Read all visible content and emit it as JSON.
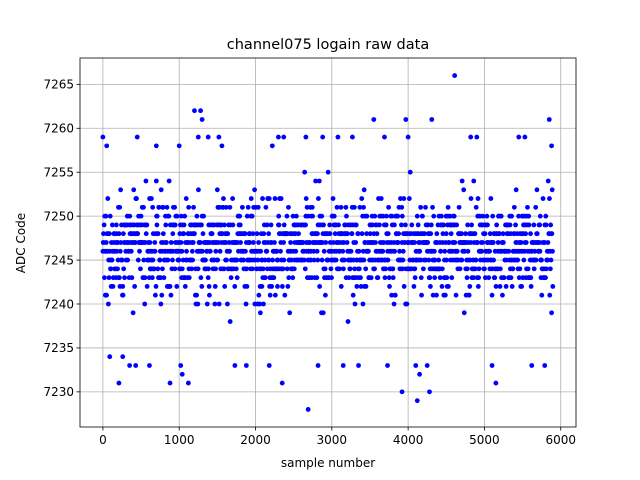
{
  "chart_data": {
    "type": "scatter",
    "title": "channel075 logain raw data",
    "xlabel": "sample number",
    "ylabel": "ADC Code",
    "xlim": [
      -300,
      6200
    ],
    "ylim": [
      7226,
      7268
    ],
    "xticks": [
      0,
      1000,
      2000,
      3000,
      4000,
      5000,
      6000
    ],
    "yticks": [
      7230,
      7235,
      7240,
      7245,
      7250,
      7255,
      7260,
      7265
    ],
    "grid": true,
    "marker_color": "#0000ff",
    "n_samples": 5900,
    "distribution": {
      "mean": 7246.5,
      "core_range": [
        7238,
        7255
      ]
    },
    "outliers": [
      {
        "x": 0,
        "y": 7259
      },
      {
        "x": 50,
        "y": 7258
      },
      {
        "x": 90,
        "y": 7234
      },
      {
        "x": 210,
        "y": 7231
      },
      {
        "x": 260,
        "y": 7234
      },
      {
        "x": 350,
        "y": 7233
      },
      {
        "x": 430,
        "y": 7233
      },
      {
        "x": 450,
        "y": 7259
      },
      {
        "x": 610,
        "y": 7233
      },
      {
        "x": 700,
        "y": 7258
      },
      {
        "x": 880,
        "y": 7231
      },
      {
        "x": 1000,
        "y": 7258
      },
      {
        "x": 1020,
        "y": 7233
      },
      {
        "x": 1040,
        "y": 7232
      },
      {
        "x": 1120,
        "y": 7231
      },
      {
        "x": 1200,
        "y": 7262
      },
      {
        "x": 1280,
        "y": 7262
      },
      {
        "x": 1300,
        "y": 7261
      },
      {
        "x": 1250,
        "y": 7259
      },
      {
        "x": 1380,
        "y": 7259
      },
      {
        "x": 1520,
        "y": 7259
      },
      {
        "x": 1560,
        "y": 7258
      },
      {
        "x": 1730,
        "y": 7233
      },
      {
        "x": 1880,
        "y": 7233
      },
      {
        "x": 2180,
        "y": 7233
      },
      {
        "x": 2220,
        "y": 7258
      },
      {
        "x": 2300,
        "y": 7259
      },
      {
        "x": 2370,
        "y": 7259
      },
      {
        "x": 2350,
        "y": 7231
      },
      {
        "x": 2660,
        "y": 7259
      },
      {
        "x": 2690,
        "y": 7228
      },
      {
        "x": 2820,
        "y": 7233
      },
      {
        "x": 2880,
        "y": 7259
      },
      {
        "x": 3080,
        "y": 7259
      },
      {
        "x": 3150,
        "y": 7233
      },
      {
        "x": 3270,
        "y": 7259
      },
      {
        "x": 3350,
        "y": 7233
      },
      {
        "x": 3550,
        "y": 7261
      },
      {
        "x": 3690,
        "y": 7259
      },
      {
        "x": 3730,
        "y": 7233
      },
      {
        "x": 3920,
        "y": 7230
      },
      {
        "x": 3970,
        "y": 7261
      },
      {
        "x": 4000,
        "y": 7259
      },
      {
        "x": 4100,
        "y": 7233
      },
      {
        "x": 4120,
        "y": 7229
      },
      {
        "x": 4150,
        "y": 7232
      },
      {
        "x": 4250,
        "y": 7233
      },
      {
        "x": 4280,
        "y": 7230
      },
      {
        "x": 4310,
        "y": 7261
      },
      {
        "x": 4610,
        "y": 7266
      },
      {
        "x": 4820,
        "y": 7259
      },
      {
        "x": 4900,
        "y": 7259
      },
      {
        "x": 5100,
        "y": 7233
      },
      {
        "x": 5150,
        "y": 7231
      },
      {
        "x": 5450,
        "y": 7259
      },
      {
        "x": 5530,
        "y": 7259
      },
      {
        "x": 5620,
        "y": 7233
      },
      {
        "x": 5790,
        "y": 7233
      },
      {
        "x": 5850,
        "y": 7261
      },
      {
        "x": 5880,
        "y": 7258
      }
    ]
  }
}
